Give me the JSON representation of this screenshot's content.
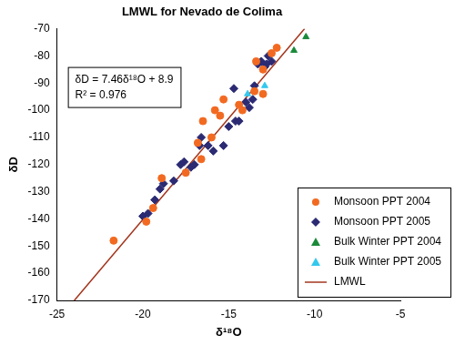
{
  "chart_data": {
    "type": "scatter",
    "title": "LMWL for Nevado de Colima",
    "x_label": "δ¹⁸O",
    "y_label": "δD",
    "xlim": [
      -25,
      -5
    ],
    "xticks": [
      -25,
      -20,
      -15,
      -10,
      -5
    ],
    "ylim": [
      -170,
      -70
    ],
    "yticks": [
      -170,
      -160,
      -150,
      -140,
      -130,
      -120,
      -110,
      -100,
      -90,
      -80,
      -70
    ],
    "grid": false,
    "legend": "lower right",
    "annotations": [
      "δD = 7.46δ¹⁸O + 8.9",
      "R² = 0.976"
    ],
    "series": [
      {
        "name": "Monsoon PPT 2004",
        "color": "#f26a21",
        "marker": "circle",
        "x": [
          -21.7,
          -19.8,
          -19.4,
          -18.9,
          -17.5,
          -16.6,
          -16.8,
          -16.0,
          -16.5,
          -15.5,
          -15.8,
          -15.3,
          -14.4,
          -14.2,
          -13.5,
          -13.0,
          -13.4,
          -12.5,
          -12.2,
          -13.0
        ],
        "values": [
          -148,
          -141,
          -136,
          -125,
          -123,
          -118,
          -112,
          -110,
          -104,
          -102,
          -100,
          -96,
          -98,
          -100,
          -93,
          -94,
          -82,
          -79,
          -77,
          -85
        ]
      },
      {
        "name": "Monsoon PPT 2005",
        "color": "#2b2a73",
        "marker": "diamond",
        "x": [
          -20.0,
          -19.7,
          -19.3,
          -19.0,
          -18.8,
          -18.2,
          -17.8,
          -17.6,
          -17.2,
          -17.0,
          -16.7,
          -16.6,
          -16.2,
          -15.9,
          -15.3,
          -15.0,
          -14.7,
          -14.6,
          -14.4,
          -14.0,
          -13.8,
          -13.6,
          -13.3,
          -13.1,
          -12.9,
          -12.8,
          -12.7,
          -12.5,
          -13.5
        ],
        "values": [
          -139,
          -138,
          -133,
          -129,
          -127,
          -126,
          -120,
          -119,
          -121,
          -120,
          -113,
          -110,
          -113,
          -115,
          -113,
          -106,
          -92,
          -104,
          -104,
          -97,
          -99,
          -96,
          -83,
          -82,
          -84,
          -83,
          -80,
          -82,
          -91
        ]
      },
      {
        "name": "Bulk Winter PPT 2004",
        "color": "#1a8a3a",
        "marker": "triangle",
        "x": [
          -11.2,
          -10.5
        ],
        "values": [
          -78,
          -73
        ]
      },
      {
        "name": "Bulk Winter PPT 2005",
        "color": "#33c8ee",
        "marker": "triangle",
        "x": [
          -13.9,
          -12.9
        ],
        "values": [
          -94,
          -91
        ]
      },
      {
        "name": "LMWL",
        "type": "line",
        "color": "#a3341c",
        "marker": "none",
        "line_style": "solid",
        "x": [
          -23.99,
          -10.58
        ],
        "values": [
          -170,
          -70
        ]
      }
    ]
  }
}
